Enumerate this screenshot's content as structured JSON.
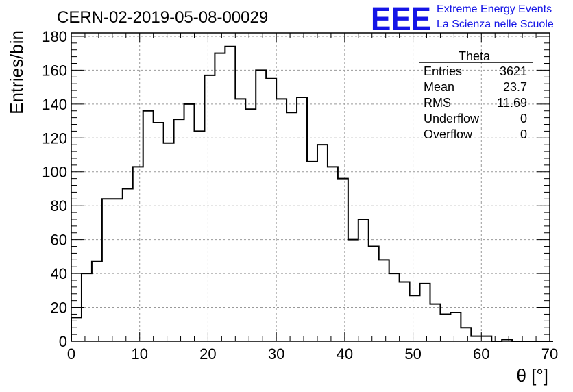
{
  "chart_data": {
    "type": "bar",
    "title": "CERN-02-2019-05-08-00029",
    "xlabel": "θ [°]",
    "ylabel": "Entries/bin",
    "xlim": [
      0,
      70
    ],
    "ylim": [
      0,
      182
    ],
    "grid": true,
    "x_ticks": [
      0,
      10,
      20,
      30,
      40,
      50,
      60,
      70
    ],
    "y_ticks": [
      0,
      20,
      40,
      60,
      80,
      100,
      120,
      140,
      160,
      180
    ],
    "bin_width": 1.5,
    "bin_edges_start": 0,
    "values": [
      14,
      40,
      47,
      84,
      84,
      90,
      103,
      136,
      129,
      117,
      131,
      140,
      124,
      157,
      170,
      174,
      143,
      137,
      160,
      155,
      143,
      135,
      144,
      106,
      116,
      103,
      96,
      60,
      72,
      56,
      48,
      40,
      35,
      27,
      34,
      22,
      16,
      17,
      8,
      3,
      3,
      0,
      1,
      0,
      0,
      0,
      0
    ],
    "stats_box": {
      "title": "Theta",
      "rows": [
        {
          "label": "Entries",
          "value": "3621"
        },
        {
          "label": "Mean",
          "value": "23.7"
        },
        {
          "label": "RMS",
          "value": "11.69"
        },
        {
          "label": "Underflow",
          "value": "0"
        },
        {
          "label": "Overflow",
          "value": "0"
        }
      ]
    }
  },
  "logo": {
    "text": "EEE",
    "line1": "Extreme Energy Events",
    "line2": "La Scienza nelle Scuole",
    "color": "#1414e6"
  },
  "colors": {
    "histogram": "#000000",
    "grid": "#999999",
    "axis": "#000000"
  }
}
